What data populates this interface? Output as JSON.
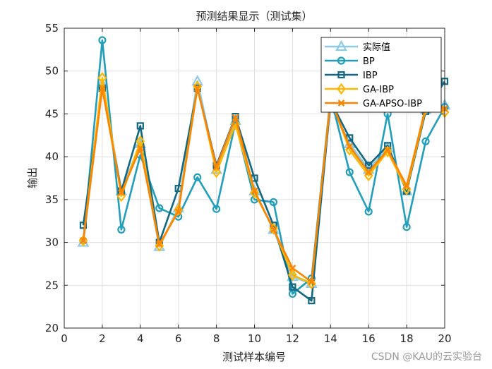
{
  "chart_data": {
    "type": "line",
    "title": "预测结果显示（测试集）",
    "xlabel": "测试样本编号",
    "ylabel": "输出",
    "xlim": [
      0,
      20
    ],
    "ylim": [
      20,
      55
    ],
    "xticks": [
      0,
      2,
      4,
      6,
      8,
      10,
      12,
      14,
      16,
      18,
      20
    ],
    "yticks": [
      20,
      25,
      30,
      35,
      40,
      45,
      50,
      55
    ],
    "grid": true,
    "legend_position": "top-right",
    "x": [
      1,
      2,
      3,
      4,
      5,
      6,
      7,
      8,
      9,
      10,
      11,
      12,
      13,
      14,
      15,
      16,
      17,
      18,
      19,
      20
    ],
    "series": [
      {
        "name": "实际值",
        "color": "#8ecae6",
        "marker": "triangle",
        "values": [
          30.0,
          48.5,
          36.0,
          41.5,
          29.5,
          34.0,
          48.8,
          38.5,
          44.2,
          36.0,
          31.5,
          26.0,
          25.2,
          46.0,
          41.5,
          38.5,
          41.0,
          36.0,
          45.5,
          46.0
        ]
      },
      {
        "name": "BP",
        "color": "#219ebc",
        "marker": "circle",
        "values": [
          30.2,
          53.6,
          31.5,
          40.2,
          34.0,
          33.0,
          37.6,
          33.9,
          44.0,
          35.0,
          34.7,
          24.0,
          25.8,
          47.0,
          38.2,
          33.6,
          45.0,
          31.8,
          41.8,
          45.8
        ]
      },
      {
        "name": "IBP",
        "color": "#126782",
        "marker": "square",
        "values": [
          32.0,
          48.0,
          36.0,
          43.6,
          30.0,
          36.3,
          48.0,
          39.0,
          44.7,
          37.5,
          32.0,
          24.8,
          23.2,
          46.5,
          42.2,
          39.0,
          41.3,
          36.0,
          45.3,
          48.8
        ]
      },
      {
        "name": "GA-IBP",
        "color": "#ffb703",
        "marker": "diamond",
        "values": [
          30.2,
          49.2,
          35.4,
          41.8,
          29.6,
          33.8,
          48.2,
          38.2,
          43.8,
          35.8,
          31.6,
          26.2,
          25.2,
          46.8,
          40.8,
          37.8,
          40.6,
          36.2,
          45.6,
          45.2
        ]
      },
      {
        "name": "GA-APSO-IBP",
        "color": "#fb8500",
        "marker": "x",
        "values": [
          30.2,
          48.0,
          35.8,
          41.0,
          29.8,
          33.6,
          48.0,
          38.8,
          44.6,
          36.0,
          31.5,
          27.0,
          25.4,
          46.6,
          41.2,
          38.2,
          40.8,
          36.6,
          45.8,
          45.6
        ]
      }
    ]
  },
  "watermark": "CSDN @KAU的云实验台"
}
